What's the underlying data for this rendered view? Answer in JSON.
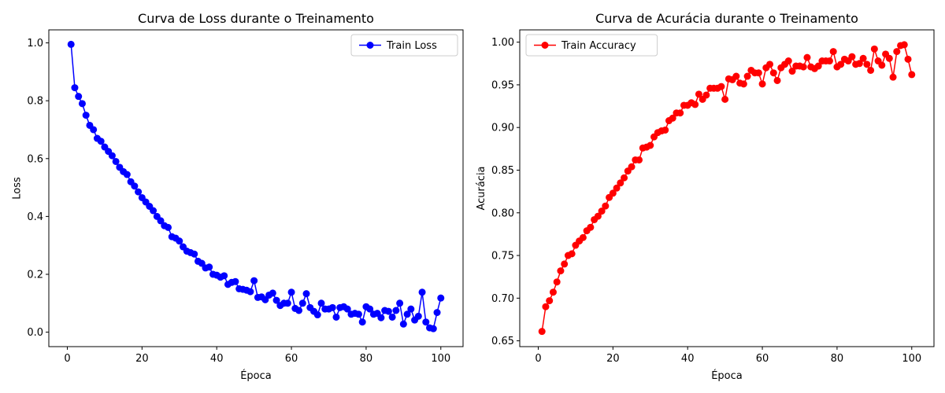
{
  "chart_data": [
    {
      "type": "line",
      "title": "Curva de Loss durante o Treinamento",
      "xlabel": "Época",
      "ylabel": "Loss",
      "xlim": [
        -4.95,
        105.95
      ],
      "ylim": [
        -0.05,
        1.045
      ],
      "xticks": [
        0,
        20,
        40,
        60,
        80,
        100
      ],
      "xtick_labels": [
        "0",
        "20",
        "40",
        "60",
        "80",
        "100"
      ],
      "yticks": [
        0.0,
        0.2,
        0.4,
        0.6,
        0.8,
        1.0
      ],
      "ytick_labels": [
        "0.0",
        "0.2",
        "0.4",
        "0.6",
        "0.8",
        "1.0"
      ],
      "legend_position": "top-right",
      "grid": false,
      "series": [
        {
          "name": "Train Loss",
          "color": "#0000ff",
          "marker": "circle",
          "x": [
            1,
            2,
            3,
            4,
            5,
            6,
            7,
            8,
            9,
            10,
            11,
            12,
            13,
            14,
            15,
            16,
            17,
            18,
            19,
            20,
            21,
            22,
            23,
            24,
            25,
            26,
            27,
            28,
            29,
            30,
            31,
            32,
            33,
            34,
            35,
            36,
            37,
            38,
            39,
            40,
            41,
            42,
            43,
            44,
            45,
            46,
            47,
            48,
            49,
            50,
            51,
            52,
            53,
            54,
            55,
            56,
            57,
            58,
            59,
            60,
            61,
            62,
            63,
            64,
            65,
            66,
            67,
            68,
            69,
            70,
            71,
            72,
            73,
            74,
            75,
            76,
            77,
            78,
            79,
            80,
            81,
            82,
            83,
            84,
            85,
            86,
            87,
            88,
            89,
            90,
            91,
            92,
            93,
            94,
            95,
            96,
            97,
            98,
            99,
            100
          ],
          "values": [
            0.995,
            0.845,
            0.815,
            0.79,
            0.75,
            0.715,
            0.7,
            0.67,
            0.66,
            0.64,
            0.625,
            0.61,
            0.59,
            0.57,
            0.555,
            0.545,
            0.52,
            0.505,
            0.485,
            0.465,
            0.45,
            0.435,
            0.42,
            0.4,
            0.385,
            0.368,
            0.362,
            0.33,
            0.325,
            0.315,
            0.295,
            0.28,
            0.275,
            0.27,
            0.245,
            0.238,
            0.222,
            0.225,
            0.2,
            0.197,
            0.19,
            0.195,
            0.165,
            0.172,
            0.175,
            0.15,
            0.148,
            0.145,
            0.14,
            0.178,
            0.12,
            0.122,
            0.112,
            0.128,
            0.135,
            0.11,
            0.092,
            0.1,
            0.1,
            0.138,
            0.082,
            0.075,
            0.1,
            0.133,
            0.085,
            0.072,
            0.06,
            0.1,
            0.08,
            0.08,
            0.085,
            0.052,
            0.085,
            0.088,
            0.08,
            0.062,
            0.065,
            0.062,
            0.035,
            0.088,
            0.08,
            0.062,
            0.065,
            0.05,
            0.075,
            0.072,
            0.052,
            0.075,
            0.1,
            0.028,
            0.062,
            0.08,
            0.042,
            0.055,
            0.138,
            0.035,
            0.015,
            0.012,
            0.068,
            0.118
          ]
        }
      ]
    },
    {
      "type": "line",
      "title": "Curva de Acurácia durante o Treinamento",
      "xlabel": "Época",
      "ylabel": "Acurácia",
      "xlim": [
        -4.95,
        105.95
      ],
      "ylim": [
        0.6432,
        1.0144
      ],
      "xticks": [
        0,
        20,
        40,
        60,
        80,
        100
      ],
      "xtick_labels": [
        "0",
        "20",
        "40",
        "60",
        "80",
        "100"
      ],
      "yticks": [
        0.65,
        0.7,
        0.75,
        0.8,
        0.85,
        0.9,
        0.95,
        1.0
      ],
      "ytick_labels": [
        "0.65",
        "0.70",
        "0.75",
        "0.80",
        "0.85",
        "0.90",
        "0.95",
        "1.00"
      ],
      "legend_position": "top-left",
      "grid": false,
      "series": [
        {
          "name": "Train Accuracy",
          "color": "#ff0000",
          "marker": "circle",
          "x": [
            1,
            2,
            3,
            4,
            5,
            6,
            7,
            8,
            9,
            10,
            11,
            12,
            13,
            14,
            15,
            16,
            17,
            18,
            19,
            20,
            21,
            22,
            23,
            24,
            25,
            26,
            27,
            28,
            29,
            30,
            31,
            32,
            33,
            34,
            35,
            36,
            37,
            38,
            39,
            40,
            41,
            42,
            43,
            44,
            45,
            46,
            47,
            48,
            49,
            50,
            51,
            52,
            53,
            54,
            55,
            56,
            57,
            58,
            59,
            60,
            61,
            62,
            63,
            64,
            65,
            66,
            67,
            68,
            69,
            70,
            71,
            72,
            73,
            74,
            75,
            76,
            77,
            78,
            79,
            80,
            81,
            82,
            83,
            84,
            85,
            86,
            87,
            88,
            89,
            90,
            91,
            92,
            93,
            94,
            95,
            96,
            97,
            98,
            99,
            100
          ],
          "values": [
            0.661,
            0.69,
            0.697,
            0.707,
            0.719,
            0.732,
            0.74,
            0.75,
            0.752,
            0.762,
            0.767,
            0.771,
            0.779,
            0.783,
            0.792,
            0.796,
            0.802,
            0.808,
            0.818,
            0.823,
            0.829,
            0.835,
            0.841,
            0.849,
            0.854,
            0.862,
            0.862,
            0.876,
            0.877,
            0.879,
            0.889,
            0.894,
            0.896,
            0.897,
            0.908,
            0.911,
            0.917,
            0.917,
            0.926,
            0.926,
            0.929,
            0.927,
            0.939,
            0.933,
            0.938,
            0.946,
            0.946,
            0.946,
            0.948,
            0.933,
            0.957,
            0.956,
            0.96,
            0.952,
            0.951,
            0.96,
            0.967,
            0.964,
            0.964,
            0.951,
            0.97,
            0.974,
            0.964,
            0.955,
            0.97,
            0.974,
            0.978,
            0.966,
            0.972,
            0.972,
            0.971,
            0.982,
            0.971,
            0.969,
            0.972,
            0.978,
            0.978,
            0.978,
            0.989,
            0.971,
            0.974,
            0.98,
            0.978,
            0.983,
            0.974,
            0.975,
            0.981,
            0.974,
            0.967,
            0.992,
            0.978,
            0.973,
            0.986,
            0.981,
            0.959,
            0.989,
            0.996,
            0.997,
            0.98,
            0.962
          ]
        }
      ]
    }
  ]
}
